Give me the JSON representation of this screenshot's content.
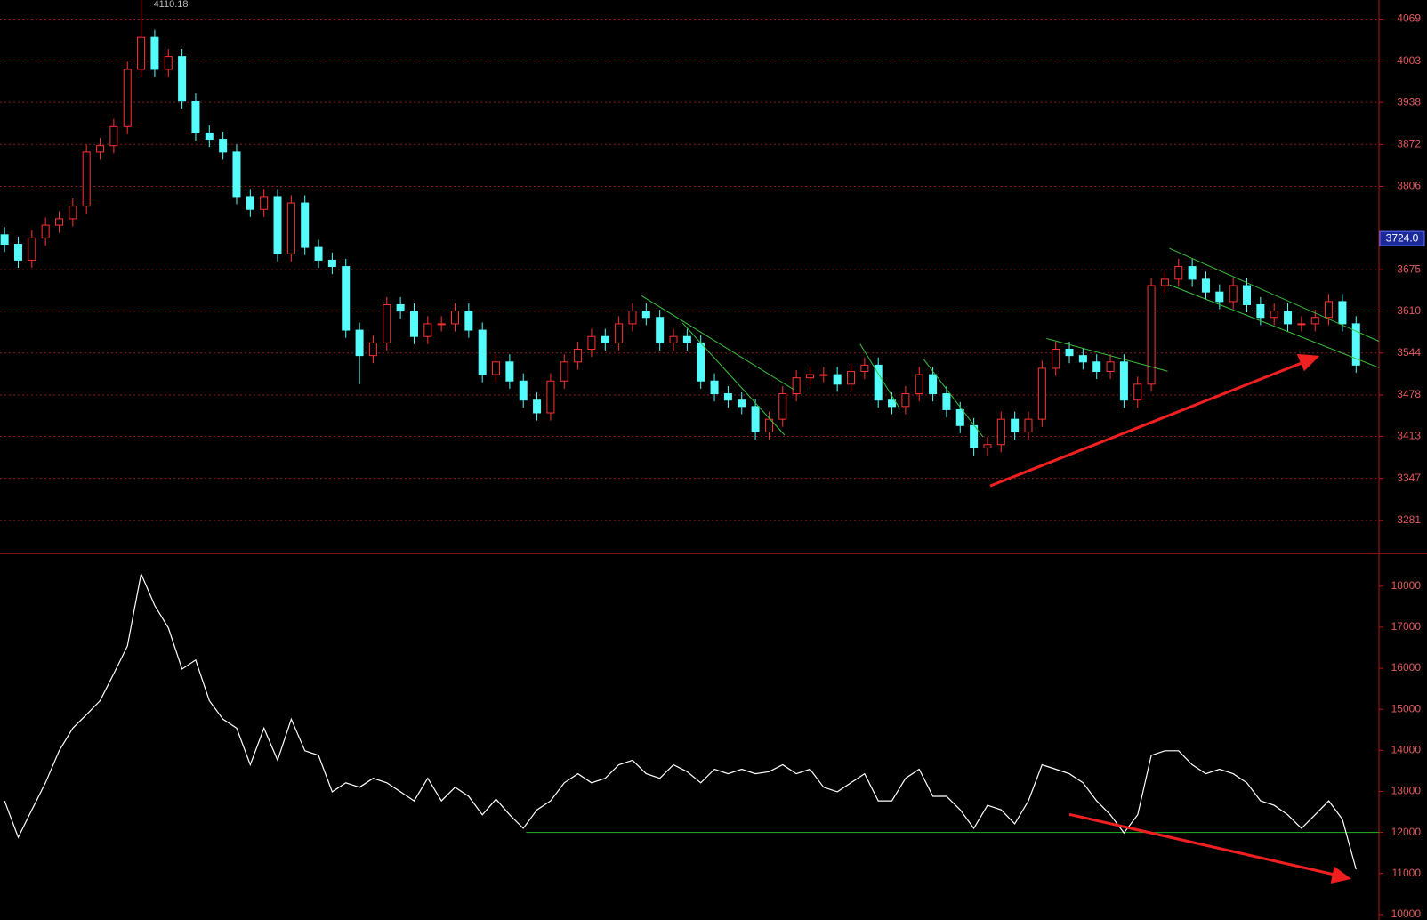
{
  "chart_data": [
    {
      "type": "candlestick",
      "open": [
        3730,
        3715,
        3690,
        3725,
        3745,
        3755,
        3775,
        3860,
        3870,
        3900,
        3990,
        4040,
        3990,
        4010,
        3940,
        3890,
        3880,
        3860,
        3790,
        3770,
        3790,
        3700,
        3780,
        3710,
        3690,
        3680,
        3580,
        3540,
        3560,
        3620,
        3610,
        3570,
        3590,
        3590,
        3610,
        3580,
        3510,
        3530,
        3500,
        3470,
        3450,
        3500,
        3530,
        3550,
        3570,
        3560,
        3590,
        3610,
        3600,
        3560,
        3570,
        3560,
        3500,
        3480,
        3470,
        3460,
        3420,
        3440,
        3480,
        3505,
        3510,
        3510,
        3495,
        3515,
        3525,
        3470,
        3460,
        3480,
        3510,
        3480,
        3455,
        3430,
        3395,
        3400,
        3440,
        3420,
        3440,
        3520,
        3550,
        3540,
        3530,
        3515,
        3530,
        3470,
        3495,
        3650,
        3660,
        3680,
        3660,
        3640,
        3625,
        3650,
        3620,
        3600,
        3610,
        3590,
        3590,
        3600,
        3625,
        3590
      ],
      "high": [
        3742,
        3727,
        3737,
        3757,
        3767,
        3787,
        3872,
        3882,
        3912,
        4002,
        4110.18,
        4052,
        4022,
        4022,
        3952,
        3902,
        3892,
        3872,
        3802,
        3802,
        3802,
        3792,
        3792,
        3722,
        3702,
        3692,
        3592,
        3572,
        3632,
        3632,
        3622,
        3602,
        3602,
        3622,
        3622,
        3592,
        3542,
        3542,
        3512,
        3482,
        3512,
        3542,
        3562,
        3582,
        3582,
        3602,
        3622,
        3622,
        3612,
        3582,
        3582,
        3572,
        3512,
        3492,
        3482,
        3472,
        3452,
        3492,
        3517,
        3522,
        3522,
        3522,
        3527,
        3537,
        3537,
        3482,
        3492,
        3522,
        3522,
        3492,
        3467,
        3442,
        3412,
        3452,
        3452,
        3452,
        3532,
        3562,
        3562,
        3552,
        3542,
        3542,
        3542,
        3507,
        3662,
        3672,
        3692,
        3692,
        3672,
        3652,
        3662,
        3662,
        3632,
        3622,
        3622,
        3602,
        3612,
        3637,
        3637,
        3602
      ],
      "low": [
        3703,
        3678,
        3678,
        3713,
        3733,
        3743,
        3763,
        3848,
        3858,
        3888,
        3978,
        3978,
        3978,
        3928,
        3878,
        3868,
        3848,
        3778,
        3758,
        3758,
        3688,
        3688,
        3698,
        3678,
        3668,
        3568,
        3495,
        3528,
        3548,
        3598,
        3558,
        3558,
        3578,
        3578,
        3568,
        3498,
        3498,
        3488,
        3458,
        3438,
        3438,
        3488,
        3518,
        3538,
        3548,
        3548,
        3578,
        3588,
        3548,
        3548,
        3548,
        3488,
        3468,
        3458,
        3448,
        3408,
        3408,
        3428,
        3468,
        3493,
        3498,
        3483,
        3483,
        3503,
        3458,
        3448,
        3448,
        3468,
        3468,
        3443,
        3418,
        3383,
        3383,
        3388,
        3408,
        3408,
        3428,
        3508,
        3528,
        3518,
        3503,
        3503,
        3458,
        3458,
        3483,
        3638,
        3648,
        3648,
        3628,
        3613,
        3613,
        3608,
        3588,
        3588,
        3578,
        3578,
        3578,
        3588,
        3578,
        3513
      ],
      "close": [
        3715,
        3690,
        3725,
        3745,
        3755,
        3775,
        3860,
        3870,
        3900,
        3990,
        4040,
        3990,
        4010,
        3940,
        3890,
        3880,
        3860,
        3790,
        3770,
        3790,
        3700,
        3780,
        3710,
        3690,
        3680,
        3580,
        3540,
        3560,
        3620,
        3610,
        3570,
        3590,
        3590,
        3610,
        3580,
        3510,
        3530,
        3500,
        3470,
        3450,
        3500,
        3530,
        3550,
        3570,
        3560,
        3590,
        3610,
        3600,
        3560,
        3570,
        3560,
        3500,
        3480,
        3470,
        3460,
        3420,
        3440,
        3480,
        3505,
        3510,
        3510,
        3495,
        3515,
        3525,
        3470,
        3460,
        3480,
        3510,
        3480,
        3455,
        3430,
        3395,
        3400,
        3440,
        3420,
        3440,
        3520,
        3550,
        3540,
        3530,
        3515,
        3530,
        3470,
        3495,
        3650,
        3660,
        3680,
        3660,
        3640,
        3625,
        3650,
        3620,
        3600,
        3610,
        3590,
        3590,
        3600,
        3625,
        3590,
        3525
      ],
      "up_color": "#ff3232",
      "down_color": "#54fcfc",
      "ylim": [
        3229,
        4099
      ],
      "yticks": [
        3281,
        3347,
        3413,
        3478,
        3544,
        3610,
        3675,
        3806,
        3872,
        3938,
        4003,
        4069
      ],
      "grid": true,
      "current_price": {
        "value": 3724,
        "label": "3724.0"
      }
    },
    {
      "type": "line",
      "values": [
        12770,
        11880,
        12550,
        13210,
        13990,
        14540,
        14870,
        15210,
        15870,
        16540,
        18300,
        17530,
        16980,
        15980,
        16200,
        15210,
        14760,
        14540,
        13650,
        14540,
        13760,
        14760,
        13990,
        13880,
        12990,
        13210,
        13100,
        13320,
        13210,
        12990,
        12770,
        13320,
        12770,
        13100,
        12880,
        12430,
        12810,
        12430,
        12100,
        12550,
        12770,
        13210,
        13430,
        13210,
        13320,
        13650,
        13760,
        13430,
        13320,
        13650,
        13480,
        13210,
        13540,
        13430,
        13540,
        13430,
        13480,
        13650,
        13430,
        13540,
        13100,
        12990,
        13210,
        13430,
        12770,
        12770,
        13320,
        13540,
        12880,
        12880,
        12550,
        12100,
        12660,
        12550,
        12210,
        12770,
        13650,
        13540,
        13430,
        13210,
        12770,
        12430,
        11990,
        12430,
        13880,
        13990,
        13990,
        13650,
        13430,
        13540,
        13430,
        13210,
        12770,
        12660,
        12430,
        12100,
        12430,
        12770,
        12320,
        11100
      ],
      "color": "#ffffff",
      "ylim": [
        9867,
        18754
      ],
      "yticks": [
        10000,
        11000,
        12000,
        13000,
        14000,
        15000,
        16000,
        17000,
        18000
      ],
      "grid": false,
      "reference_line": 12000,
      "reference_color": "#22b422"
    }
  ]
}
